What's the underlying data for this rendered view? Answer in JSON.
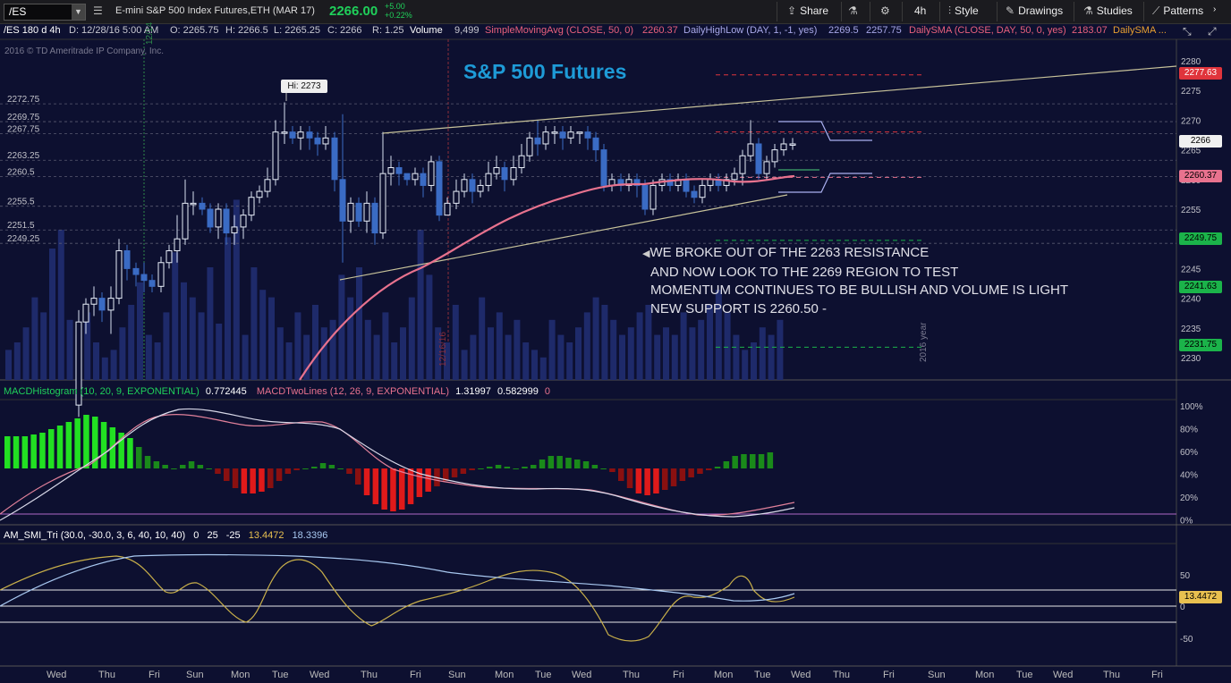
{
  "toolbar": {
    "symbol": "/ES",
    "description": "E-mini S&P 500 Index Futures,ETH (MAR 17)",
    "last_price": "2266.00",
    "change": "+5.00",
    "change_pct": "+0.22%",
    "share_label": "Share",
    "timeframe_label": "4h",
    "style_label": "Style",
    "drawings_label": "Drawings",
    "studies_label": "Studies",
    "patterns_label": "Patterns"
  },
  "studybar": {
    "agg": "/ES 180 d 4h",
    "date": "D: 12/28/16 5:00 AM",
    "open": "O: 2265.75",
    "high": "H: 2266.5",
    "low": "L: 2265.25",
    "close": "C: 2266",
    "range": "R: 1.25",
    "volume_label": "Volume",
    "volume_value": "9,499",
    "sma_label": "SimpleMovingAvg (CLOSE, 50, 0)",
    "sma_value": "2260.37",
    "dhl_label": "DailyHighLow (DAY, 1, -1, yes)",
    "dhl_high": "2269.5",
    "dhl_low": "2257.75",
    "dsma_label": "DailySMA (CLOSE, DAY, 50, 0, yes)",
    "dsma_value": "2183.07",
    "dsma2_label": "DailySMA ..."
  },
  "chart": {
    "title": "S&P 500 Futures",
    "copyright": "2016 © TD Ameritrade IP Company, Inc.",
    "hi_label": "Hi: 2273",
    "right_axis": [
      "2280",
      "2275",
      "2270",
      "2265",
      "2260",
      "2255",
      "2250",
      "2245",
      "2240",
      "2235",
      "2230"
    ],
    "left_levels": [
      "2272.75",
      "2269.75",
      "2267.75",
      "2263.25",
      "2260.5",
      "2255.5",
      "2251.5",
      "2249.25"
    ],
    "badges": {
      "b2277": "2277.63",
      "b2266": "2266",
      "b2260": "2260.37",
      "b2249": "2249.75",
      "b2241": "2241.63",
      "b2231": "2231.75"
    },
    "vlabel_date": "12/16/16",
    "vlabel_year": "2016 year",
    "annotation": [
      "WE BROKE OUT OF THE 2263 RESISTANCE",
      "AND NOW LOOK TO THE 2269 REGION TO TEST",
      "MOMENTUM CONTINUES TO BE BULLISH AND VOLUME IS LIGHT",
      "NEW SUPPORT IS 2260.50 -"
    ]
  },
  "macd": {
    "hist_label": "MACDHistogram (10, 20, 9, EXPONENTIAL)",
    "hist_value": "0.772445",
    "lines_label": "MACDTwoLines (12, 26, 9, EXPONENTIAL)",
    "lines_v1": "1.31997",
    "lines_v2": "0.582999",
    "lines_v3": "0",
    "axis": [
      "100%",
      "80%",
      "60%",
      "40%",
      "20%",
      "0%"
    ]
  },
  "smi": {
    "label": "AM_SMI_Tri (30.0, -30.0, 3, 6, 40, 10, 40)",
    "v1": "0",
    "v2": "25",
    "v3": "-25",
    "v4": "13.4472",
    "v5": "18.3396",
    "axis": [
      "50",
      "0",
      "-50"
    ],
    "badge": "13.4472"
  },
  "xaxis": [
    "Wed",
    "Thu",
    "Fri",
    "Sun",
    "Mon",
    "Tue",
    "Wed",
    "Thu",
    "Fri",
    "Sun",
    "Mon",
    "Tue",
    "Wed",
    "Thu",
    "Fri",
    "Mon",
    "Tue",
    "Wed",
    "Thu",
    "Fri",
    "Sun",
    "Mon",
    "Tue",
    "Wed",
    "Thu",
    "Fri"
  ],
  "colors": {
    "up": "#9ab4e6",
    "down": "#3a6bc4",
    "sma": "#e06a8a",
    "badge_green": "#1bb34a",
    "badge_red": "#e0343c"
  }
}
